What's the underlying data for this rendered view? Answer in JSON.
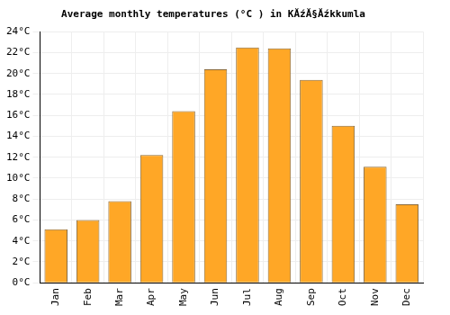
{
  "chart_data": {
    "type": "bar",
    "title": "Average monthly temperatures (°C ) in KĂźĂ§Ăźkkumla",
    "categories": [
      "Jan",
      "Feb",
      "Mar",
      "Apr",
      "May",
      "Jun",
      "Jul",
      "Aug",
      "Sep",
      "Oct",
      "Nov",
      "Dec"
    ],
    "values": [
      5.1,
      6.0,
      7.8,
      12.2,
      16.4,
      20.4,
      22.5,
      22.4,
      19.4,
      15.0,
      11.1,
      7.5
    ],
    "color": "#ffa726",
    "ylim": [
      0,
      24
    ],
    "yticks": [
      {
        "value": 0,
        "label": "0°C"
      },
      {
        "value": 2,
        "label": "2°C"
      },
      {
        "value": 4,
        "label": "4°C"
      },
      {
        "value": 6,
        "label": "6°C"
      },
      {
        "value": 8,
        "label": "8°C"
      },
      {
        "value": 10,
        "label": "10°C"
      },
      {
        "value": 12,
        "label": "12°C"
      },
      {
        "value": 14,
        "label": "14°C"
      },
      {
        "value": 16,
        "label": "16°C"
      },
      {
        "value": 18,
        "label": "18°C"
      },
      {
        "value": 20,
        "label": "20°C"
      },
      {
        "value": 22,
        "label": "22°C"
      },
      {
        "value": 24,
        "label": "24°C"
      }
    ],
    "grid": true
  }
}
